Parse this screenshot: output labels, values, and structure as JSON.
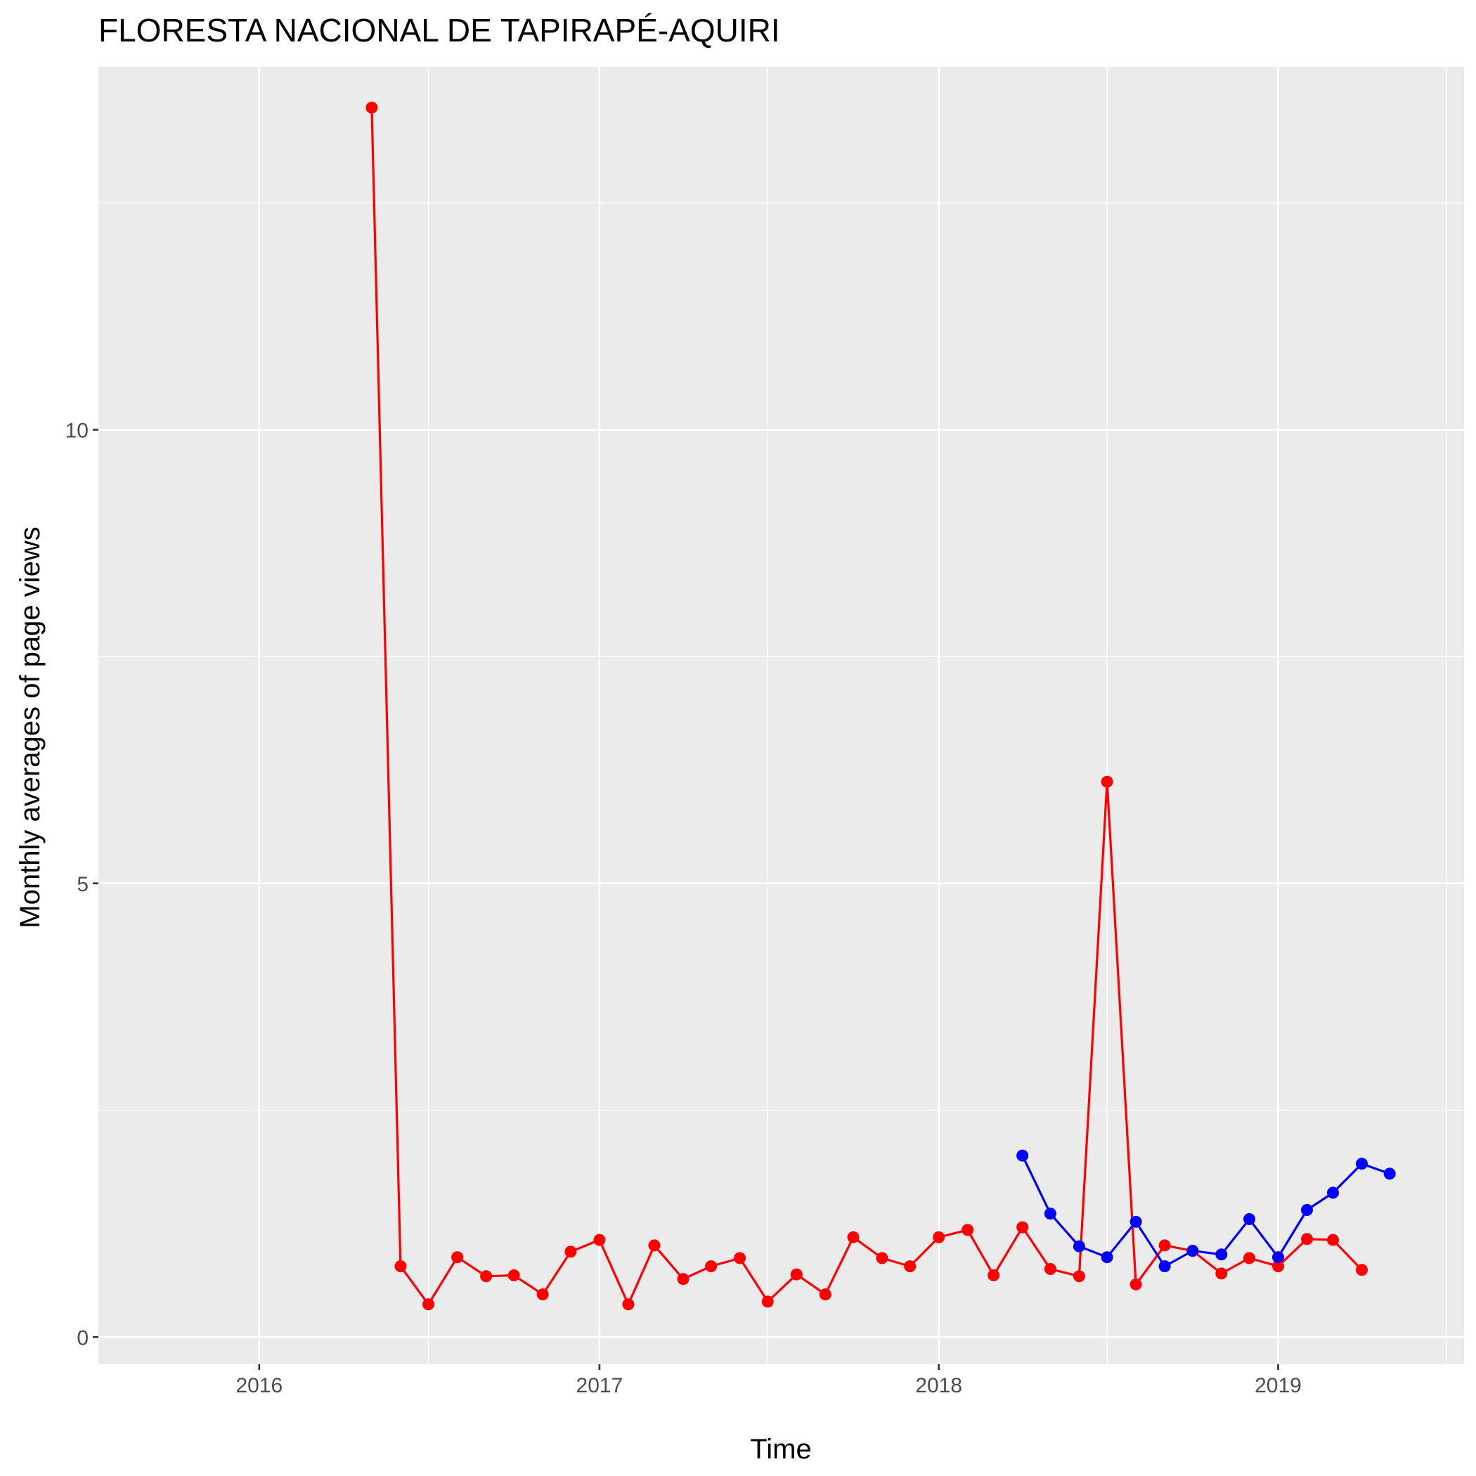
{
  "chart_data": {
    "type": "line",
    "title": "FLORESTA NACIONAL DE TAPIRAPÉ-AQUIRI",
    "xlabel": "Time",
    "ylabel": "Monthly averages of page views",
    "x_ticks": [
      "2016",
      "2017",
      "2018",
      "2019"
    ],
    "y_ticks": [
      "0",
      "5",
      "10"
    ],
    "x_range": [
      "2015-07-12",
      "2019-07-20"
    ],
    "ylim": [
      -0.3,
      14.0
    ],
    "grid": true,
    "legend": "none",
    "series": [
      {
        "color": "#ff0000",
        "points": [
          [
            "2016-05-01",
            13.55
          ],
          [
            "2016-06-01",
            0.78
          ],
          [
            "2016-07-01",
            0.36
          ],
          [
            "2016-08-01",
            0.88
          ],
          [
            "2016-09-01",
            0.67
          ],
          [
            "2016-10-01",
            0.68
          ],
          [
            "2016-11-01",
            0.47
          ],
          [
            "2016-12-01",
            0.94
          ],
          [
            "2017-01-01",
            1.07
          ],
          [
            "2017-02-01",
            0.36
          ],
          [
            "2017-03-01",
            1.01
          ],
          [
            "2017-04-01",
            0.64
          ],
          [
            "2017-05-01",
            0.78
          ],
          [
            "2017-06-01",
            0.87
          ],
          [
            "2017-07-01",
            0.39
          ],
          [
            "2017-08-01",
            0.69
          ],
          [
            "2017-09-01",
            0.47
          ],
          [
            "2017-10-01",
            1.1
          ],
          [
            "2017-11-01",
            0.87
          ],
          [
            "2017-12-01",
            0.78
          ],
          [
            "2018-01-01",
            1.1
          ],
          [
            "2018-02-01",
            1.18
          ],
          [
            "2018-03-01",
            0.68
          ],
          [
            "2018-04-01",
            1.21
          ],
          [
            "2018-05-01",
            0.75
          ],
          [
            "2018-06-01",
            0.67
          ],
          [
            "2018-07-01",
            6.12
          ],
          [
            "2018-08-01",
            0.58
          ],
          [
            "2018-09-01",
            1.01
          ],
          [
            "2018-10-01",
            0.95
          ],
          [
            "2018-11-01",
            0.7
          ],
          [
            "2018-12-01",
            0.87
          ],
          [
            "2019-01-01",
            0.78
          ],
          [
            "2019-02-01",
            1.08
          ],
          [
            "2019-03-01",
            1.07
          ],
          [
            "2019-04-01",
            0.74
          ]
        ]
      },
      {
        "color": "#0000ff",
        "points": [
          [
            "2018-04-01",
            2.0
          ],
          [
            "2018-05-01",
            1.36
          ],
          [
            "2018-06-01",
            1.0
          ],
          [
            "2018-07-01",
            0.88
          ],
          [
            "2018-08-01",
            1.27
          ],
          [
            "2018-09-01",
            0.78
          ],
          [
            "2018-10-01",
            0.95
          ],
          [
            "2018-11-01",
            0.91
          ],
          [
            "2018-12-01",
            1.3
          ],
          [
            "2019-01-01",
            0.88
          ],
          [
            "2019-02-01",
            1.4
          ],
          [
            "2019-03-01",
            1.59
          ],
          [
            "2019-04-01",
            1.91
          ],
          [
            "2019-05-01",
            1.8
          ]
        ]
      }
    ]
  }
}
